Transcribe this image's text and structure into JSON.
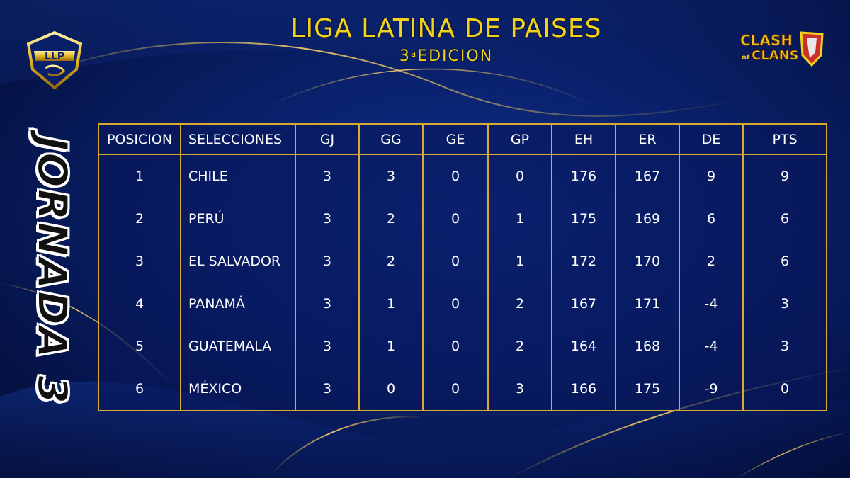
{
  "header": {
    "title": "LIGA LATINA DE PAISES",
    "subtitle_num": "3",
    "subtitle_sup": "a",
    "subtitle_text": "EDICION"
  },
  "logos": {
    "left_text": "LLP",
    "right_line1": "CLASH",
    "right_line2": "of",
    "right_line3": "CLANS"
  },
  "side_label": "JORNADA 3",
  "colors": {
    "gold": "#f2d21a",
    "border_gold": "#d8aa2f",
    "background": "#0a2370"
  },
  "table": {
    "headers": [
      "POSICION",
      "SELECCIONES",
      "GJ",
      "GG",
      "GE",
      "GP",
      "EH",
      "ER",
      "DE",
      "PTS"
    ],
    "rows": [
      [
        "1",
        "CHILE",
        "3",
        "3",
        "0",
        "0",
        "176",
        "167",
        "9",
        "9"
      ],
      [
        "2",
        "PERÚ",
        "3",
        "2",
        "0",
        "1",
        "175",
        "169",
        "6",
        "6"
      ],
      [
        "3",
        "EL SALVADOR",
        "3",
        "2",
        "0",
        "1",
        "172",
        "170",
        "2",
        "6"
      ],
      [
        "4",
        "PANAMÁ",
        "3",
        "1",
        "0",
        "2",
        "167",
        "171",
        "-4",
        "3"
      ],
      [
        "5",
        "GUATEMALA",
        "3",
        "1",
        "0",
        "2",
        "164",
        "168",
        "-4",
        "3"
      ],
      [
        "6",
        "MÉXICO",
        "3",
        "0",
        "0",
        "3",
        "166",
        "175",
        "-9",
        "0"
      ]
    ]
  }
}
